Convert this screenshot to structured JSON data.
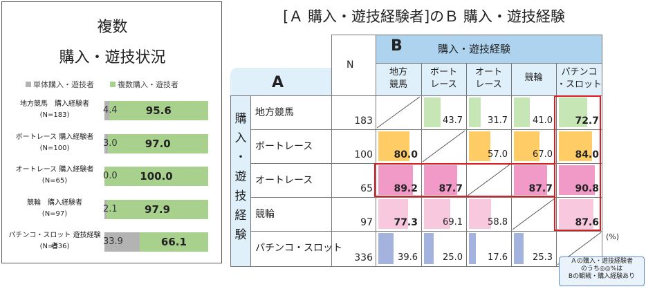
{
  "left": {
    "title1": "複数",
    "title2": "購入・遊技状況",
    "legend": {
      "single": "単体購入・遊技者",
      "multi": "複数購入・遊技者"
    },
    "colors": {
      "single": "#b3b3b3",
      "multi": "#a9d18e"
    }
  },
  "chart_data": [
    {
      "type": "bar",
      "stacked": true,
      "horizontal": true,
      "categories": [
        {
          "label": "地方競馬　購入経験者",
          "n": "(N=183)"
        },
        {
          "label": "ボートレース 購入経験者",
          "n": "(N=100)"
        },
        {
          "label": "オートレース 購入経験者",
          "n": "(N=65)"
        },
        {
          "label": "競輪　購入経験者",
          "n": "(N=97)"
        },
        {
          "label": "パチンコ・スロット 遊技経験者",
          "n": "(N=336)"
        }
      ],
      "series": [
        {
          "name": "単体購入・遊技者",
          "values": [
            "4.4",
            "3.0",
            "0.0",
            "2.1",
            "33.9"
          ]
        },
        {
          "name": "複数購入・遊技者",
          "values": [
            "95.6",
            "97.0",
            "100.0",
            "97.9",
            "66.1"
          ]
        }
      ],
      "xlim": [
        0,
        100
      ]
    },
    {
      "type": "table",
      "title": "[Ａ 購入・遊技経験者]のＢ 購入・遊技経験",
      "row_header_letter": "A",
      "row_header_vertical": [
        "購",
        "入",
        "・",
        "遊",
        "技",
        "経",
        "験"
      ],
      "col_header_letter": "B",
      "col_header_label": "購入・遊技経験",
      "n_header": "N",
      "columns": [
        [
          "地方",
          "競馬"
        ],
        [
          "ボート",
          "レース"
        ],
        [
          "オート",
          "レース"
        ],
        [
          "競輪",
          ""
        ],
        [
          "パチンコ",
          "・スロット"
        ]
      ],
      "rows": [
        {
          "label": "地方競馬",
          "n": "183",
          "values": [
            null,
            "43.7",
            "31.7",
            "41.0",
            "72.7"
          ]
        },
        {
          "label": "ボートレース",
          "n": "100",
          "values": [
            "80.0",
            null,
            "57.0",
            "67.0",
            "84.0"
          ]
        },
        {
          "label": "オートレース",
          "n": "65",
          "values": [
            "89.2",
            "87.7",
            null,
            "87.7",
            "90.8"
          ]
        },
        {
          "label": "競輪",
          "n": "97",
          "values": [
            "77.3",
            "69.1",
            "58.8",
            null,
            "87.6"
          ]
        },
        {
          "label": "パチンコ・スロット",
          "n": "336",
          "values": [
            "39.6",
            "25.0",
            "17.6",
            "25.3",
            null
          ]
        }
      ],
      "unit": "(%)",
      "note": [
        "Ａの購入・遊技経験者",
        "のうち◎◎%は",
        "Bの観戦・購入経験あり"
      ],
      "colors": {
        "green": "#c7e6b5",
        "orange": "#ffcc66",
        "pink_strong": "#f19ac7",
        "pink_light": "#f8c8df",
        "blue": "#a4b3de",
        "header_blue": "#aed3ef",
        "header_light": "#dff0fb",
        "highlight": "#e0191f"
      }
    }
  ]
}
